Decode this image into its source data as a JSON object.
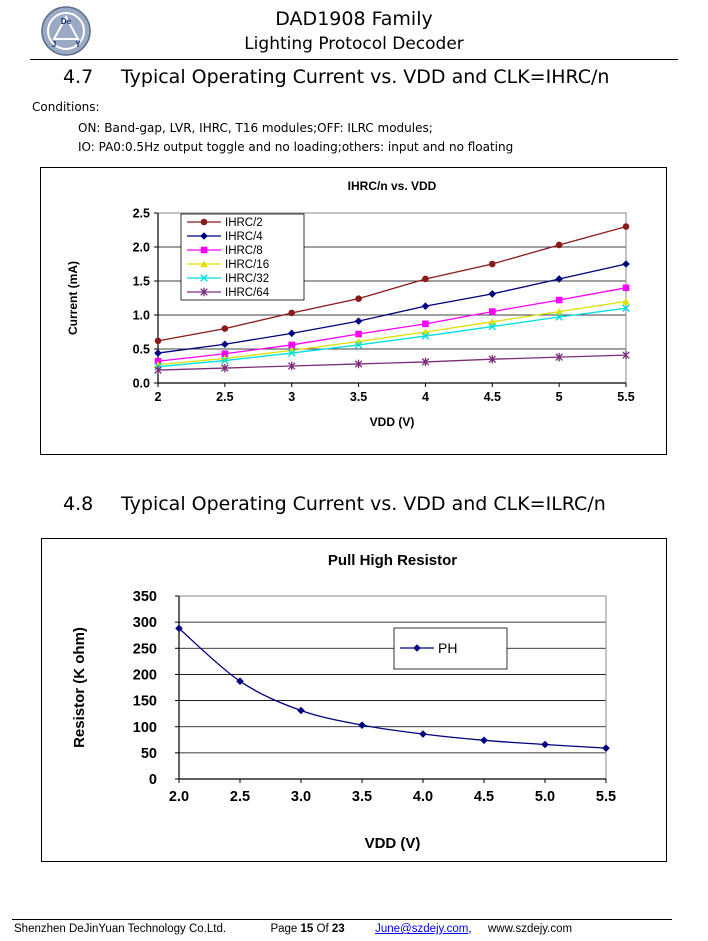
{
  "header": {
    "title": "DAD1908 Family",
    "subtitle": "Lighting Protocol Decoder",
    "logo": {
      "text_top": "De",
      "text_left": "J",
      "text_right": "Y"
    }
  },
  "section_47": {
    "number": "4.7",
    "title": "Typical Operating Current vs. VDD and CLK=IHRC/n",
    "conditions_label": "Conditions:",
    "conditions": [
      "ON: Band-gap, LVR, IHRC, T16 modules;OFF: ILRC modules;",
      "IO: PA0:0.5Hz output toggle and no loading;others: input and no floating"
    ]
  },
  "section_48": {
    "number": "4.8",
    "title": "Typical Operating Current vs. VDD and CLK=ILRC/n"
  },
  "chart_data": [
    {
      "type": "line",
      "title": "IHRC/n vs. VDD",
      "xlabel": "VDD (V)",
      "ylabel": "Current (mA)",
      "x": [
        2,
        2.5,
        3,
        3.5,
        4,
        4.5,
        5,
        5.5
      ],
      "xticks": [
        "2",
        "2.5",
        "3",
        "3.5",
        "4",
        "4.5",
        "5",
        "5.5"
      ],
      "yticks": [
        "0.0",
        "0.5",
        "1.0",
        "1.5",
        "2.0",
        "2.5"
      ],
      "xlim": [
        2,
        5.5
      ],
      "ylim": [
        0,
        2.5
      ],
      "grid": true,
      "legend": "top-left",
      "series": [
        {
          "name": "IHRC/2",
          "color": "#8b1a1a",
          "marker": "circle",
          "values": [
            0.62,
            0.8,
            1.03,
            1.24,
            1.53,
            1.75,
            2.03,
            2.3
          ]
        },
        {
          "name": "IHRC/4",
          "color": "#000080",
          "marker": "diamond",
          "values": [
            0.44,
            0.57,
            0.73,
            0.91,
            1.13,
            1.31,
            1.53,
            1.75
          ]
        },
        {
          "name": "IHRC/8",
          "color": "#ff00ff",
          "marker": "square",
          "values": [
            0.32,
            0.43,
            0.56,
            0.72,
            0.87,
            1.05,
            1.22,
            1.4
          ]
        },
        {
          "name": "IHRC/16",
          "color": "#e0e000",
          "marker": "triangle",
          "values": [
            0.27,
            0.36,
            0.48,
            0.61,
            0.75,
            0.9,
            1.05,
            1.2
          ]
        },
        {
          "name": "IHRC/32",
          "color": "#00e0e0",
          "marker": "x",
          "values": [
            0.24,
            0.33,
            0.44,
            0.56,
            0.69,
            0.83,
            0.97,
            1.1
          ]
        },
        {
          "name": "IHRC/64",
          "color": "#7a2d7a",
          "marker": "star",
          "values": [
            0.19,
            0.22,
            0.25,
            0.28,
            0.31,
            0.35,
            0.38,
            0.41
          ]
        }
      ]
    },
    {
      "type": "line",
      "title": "Pull High Resistor",
      "xlabel": "VDD (V)",
      "ylabel": "Resistor (K ohm)",
      "x": [
        2.0,
        2.5,
        3.0,
        3.5,
        4.0,
        4.5,
        5.0,
        5.5
      ],
      "xticks": [
        "2.0",
        "2.5",
        "3.0",
        "3.5",
        "4.0",
        "4.5",
        "5.0",
        "5.5"
      ],
      "yticks": [
        "0",
        "50",
        "100",
        "150",
        "200",
        "250",
        "300",
        "350"
      ],
      "xlim": [
        2.0,
        5.5
      ],
      "ylim": [
        0,
        350
      ],
      "grid": true,
      "legend": "top-right",
      "series": [
        {
          "name": "PH",
          "color": "#000080",
          "marker": "diamond",
          "values": [
            288,
            187,
            131,
            103,
            86,
            74,
            66,
            59
          ]
        }
      ]
    }
  ],
  "footer": {
    "company": "Shenzhen DeJinYuan Technology Co.Ltd.",
    "page_label": "Page",
    "page_number": "15",
    "of_label": "Of",
    "total_pages": "23",
    "email": "June@szdejy.com",
    "separator": ",",
    "website": "www.szdejy.com"
  }
}
